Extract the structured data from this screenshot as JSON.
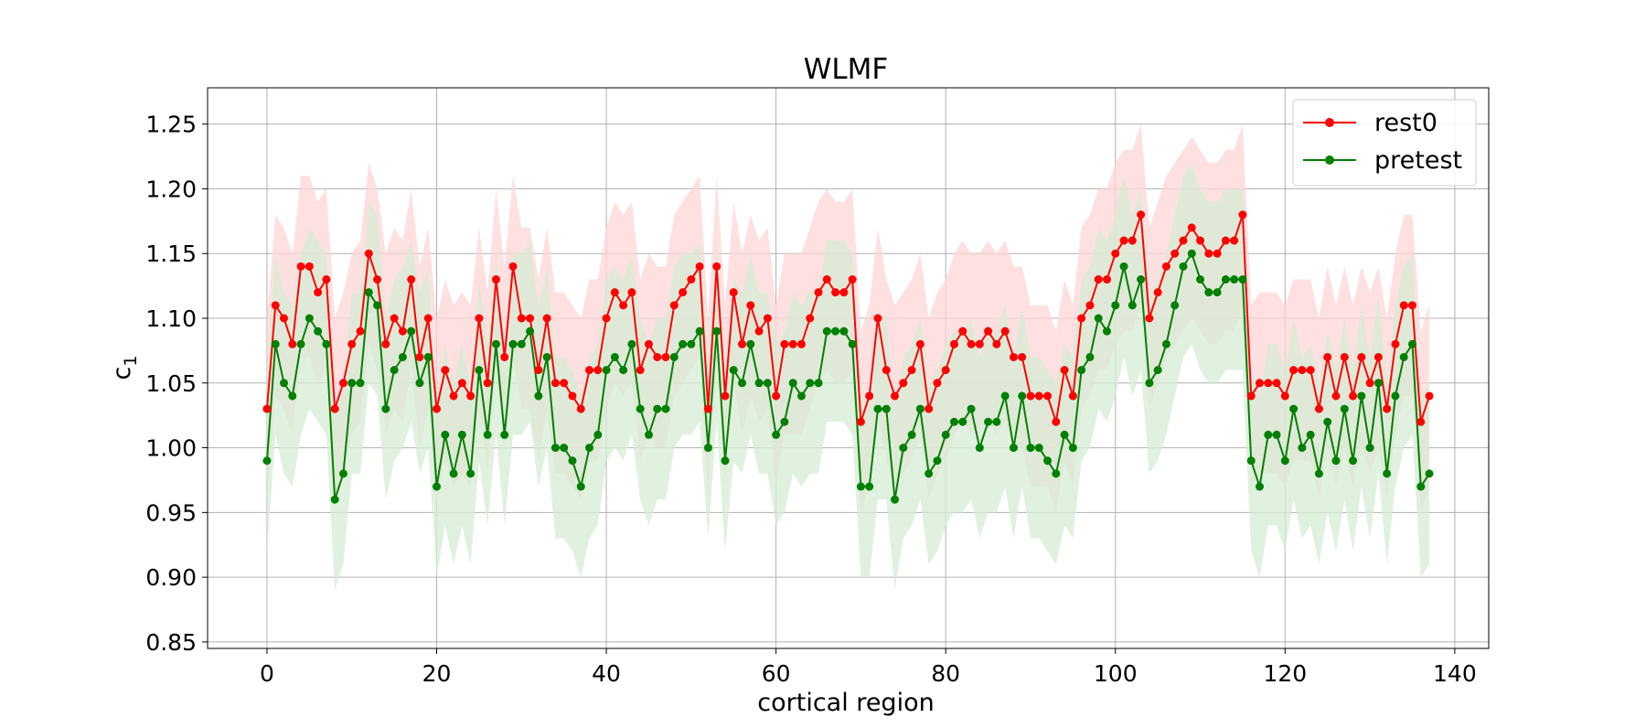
{
  "chart_data": {
    "type": "line",
    "title": "WLMF",
    "xlabel": "cortical region",
    "ylabel": "c",
    "ylabel_subscript": "1",
    "xlim": [
      -7,
      144
    ],
    "ylim": [
      0.845,
      1.278
    ],
    "xticks": [
      0,
      20,
      40,
      60,
      80,
      100,
      120,
      140
    ],
    "yticks": [
      0.85,
      0.9,
      0.95,
      1.0,
      1.05,
      1.1,
      1.15,
      1.2,
      1.25
    ],
    "xtick_labels": [
      "0",
      "20",
      "40",
      "60",
      "80",
      "100",
      "120",
      "140"
    ],
    "ytick_labels": [
      "0.85",
      "0.90",
      "0.95",
      "1.00",
      "1.05",
      "1.10",
      "1.15",
      "1.20",
      "1.25"
    ],
    "grid": true,
    "legend": "top-right",
    "band_halfwidth": {
      "rest0": 0.07,
      "pretest": 0.07
    },
    "series": [
      {
        "name": "rest0",
        "color": "#ff0000",
        "band_color": "#ffd6d6",
        "values": [
          1.03,
          1.11,
          1.1,
          1.08,
          1.14,
          1.14,
          1.12,
          1.13,
          1.03,
          1.05,
          1.08,
          1.09,
          1.15,
          1.13,
          1.08,
          1.1,
          1.09,
          1.13,
          1.07,
          1.1,
          1.03,
          1.06,
          1.04,
          1.05,
          1.04,
          1.1,
          1.05,
          1.13,
          1.07,
          1.14,
          1.1,
          1.1,
          1.06,
          1.1,
          1.05,
          1.05,
          1.04,
          1.03,
          1.06,
          1.06,
          1.1,
          1.12,
          1.11,
          1.12,
          1.06,
          1.08,
          1.07,
          1.07,
          1.11,
          1.12,
          1.13,
          1.14,
          1.03,
          1.14,
          1.04,
          1.12,
          1.08,
          1.11,
          1.09,
          1.1,
          1.04,
          1.08,
          1.08,
          1.08,
          1.1,
          1.12,
          1.13,
          1.12,
          1.12,
          1.13,
          1.02,
          1.04,
          1.1,
          1.06,
          1.04,
          1.05,
          1.06,
          1.08,
          1.03,
          1.05,
          1.06,
          1.08,
          1.09,
          1.08,
          1.08,
          1.09,
          1.08,
          1.09,
          1.07,
          1.07,
          1.04,
          1.04,
          1.04,
          1.02,
          1.06,
          1.04,
          1.1,
          1.11,
          1.13,
          1.13,
          1.15,
          1.16,
          1.16,
          1.18,
          1.1,
          1.12,
          1.14,
          1.15,
          1.16,
          1.17,
          1.16,
          1.15,
          1.15,
          1.16,
          1.16,
          1.18,
          1.04,
          1.05,
          1.05,
          1.05,
          1.04,
          1.06,
          1.06,
          1.06,
          1.03,
          1.07,
          1.04,
          1.07,
          1.04,
          1.07,
          1.05,
          1.07,
          1.03,
          1.08,
          1.11,
          1.11,
          1.02,
          1.04
        ]
      },
      {
        "name": "pretest",
        "color": "#008000",
        "band_color": "#d6ecd6",
        "values": [
          0.99,
          1.08,
          1.05,
          1.04,
          1.08,
          1.1,
          1.09,
          1.08,
          0.96,
          0.98,
          1.05,
          1.05,
          1.12,
          1.11,
          1.03,
          1.06,
          1.07,
          1.09,
          1.05,
          1.07,
          0.97,
          1.01,
          0.98,
          1.01,
          0.98,
          1.06,
          1.01,
          1.08,
          1.01,
          1.08,
          1.08,
          1.09,
          1.04,
          1.07,
          1.0,
          1.0,
          0.99,
          0.97,
          1.0,
          1.01,
          1.06,
          1.07,
          1.06,
          1.08,
          1.03,
          1.01,
          1.03,
          1.03,
          1.07,
          1.08,
          1.08,
          1.09,
          1.0,
          1.09,
          0.99,
          1.06,
          1.05,
          1.08,
          1.05,
          1.05,
          1.01,
          1.02,
          1.05,
          1.04,
          1.05,
          1.05,
          1.09,
          1.09,
          1.09,
          1.08,
          0.97,
          0.97,
          1.03,
          1.03,
          0.96,
          1.0,
          1.01,
          1.03,
          0.98,
          0.99,
          1.01,
          1.02,
          1.02,
          1.03,
          1.0,
          1.02,
          1.02,
          1.04,
          1.0,
          1.04,
          1.0,
          1.0,
          0.99,
          0.98,
          1.01,
          1.0,
          1.06,
          1.07,
          1.1,
          1.09,
          1.11,
          1.14,
          1.11,
          1.13,
          1.05,
          1.06,
          1.08,
          1.11,
          1.14,
          1.15,
          1.13,
          1.12,
          1.12,
          1.13,
          1.13,
          1.13,
          0.99,
          0.97,
          1.01,
          1.01,
          0.99,
          1.03,
          1.0,
          1.01,
          0.98,
          1.02,
          0.99,
          1.03,
          0.99,
          1.04,
          1.0,
          1.05,
          0.98,
          1.04,
          1.07,
          1.08,
          0.97,
          0.98
        ]
      }
    ]
  }
}
